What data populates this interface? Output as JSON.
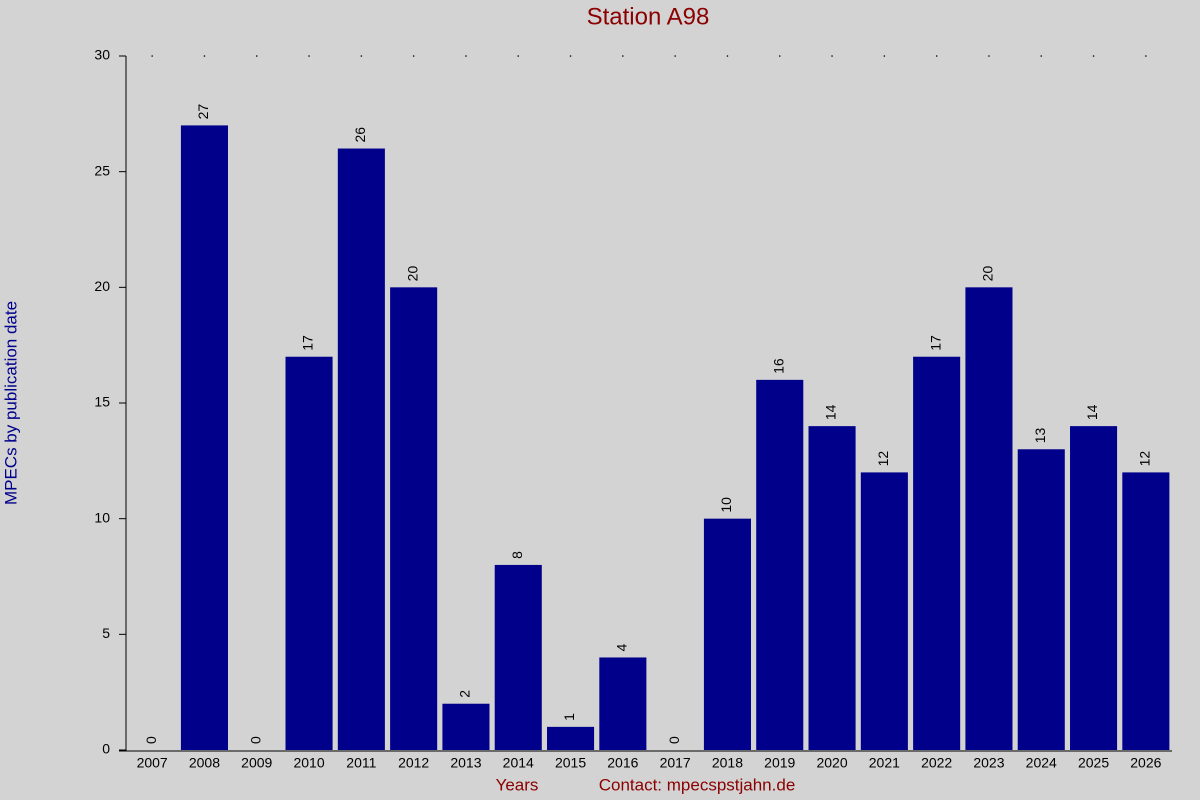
{
  "chart_data": {
    "type": "bar",
    "title": "Station A98",
    "y_label": "MPECs by publication date",
    "x_label": "Years",
    "annotation": "Contact: mpecspstjahn.de",
    "categories": [
      "2007",
      "2008",
      "2009",
      "2010",
      "2011",
      "2012",
      "2013",
      "2014",
      "2015",
      "2016",
      "2017",
      "2018",
      "2019",
      "2020",
      "2021",
      "2022",
      "2023",
      "2024",
      "2025",
      "2026"
    ],
    "values": [
      0,
      27,
      0,
      17,
      26,
      20,
      2,
      8,
      1,
      4,
      0,
      10,
      16,
      14,
      12,
      17,
      20,
      13,
      14,
      12
    ],
    "color": "#00008b",
    "ylim": [
      0,
      30
    ],
    "yticks": [
      0,
      5,
      10,
      15,
      20,
      25,
      30
    ],
    "grid": false
  }
}
